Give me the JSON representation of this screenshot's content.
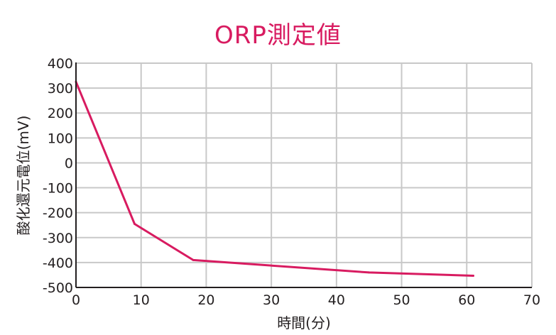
{
  "chart_data": {
    "type": "line",
    "title": "ORP測定値",
    "xlabel": "時間(分)",
    "ylabel": "酸化還元電位(mV)",
    "xlim": [
      0,
      70
    ],
    "ylim": [
      -500,
      400
    ],
    "x_ticks": [
      "0",
      "10",
      "20",
      "30",
      "40",
      "50",
      "60",
      "70"
    ],
    "y_ticks": [
      "400",
      "300",
      "200",
      "100",
      "0",
      "-100",
      "-200",
      "-300",
      "-400",
      "-500"
    ],
    "grid": true,
    "series": [
      {
        "x": [
          0,
          9,
          18,
          45,
          61
        ],
        "y": [
          325,
          -245,
          -390,
          -440,
          -453
        ]
      }
    ],
    "colors": {
      "line": "#d81b60",
      "grid": "#c8c8c8",
      "axis": "#231f20",
      "title": "#d81b60"
    }
  }
}
